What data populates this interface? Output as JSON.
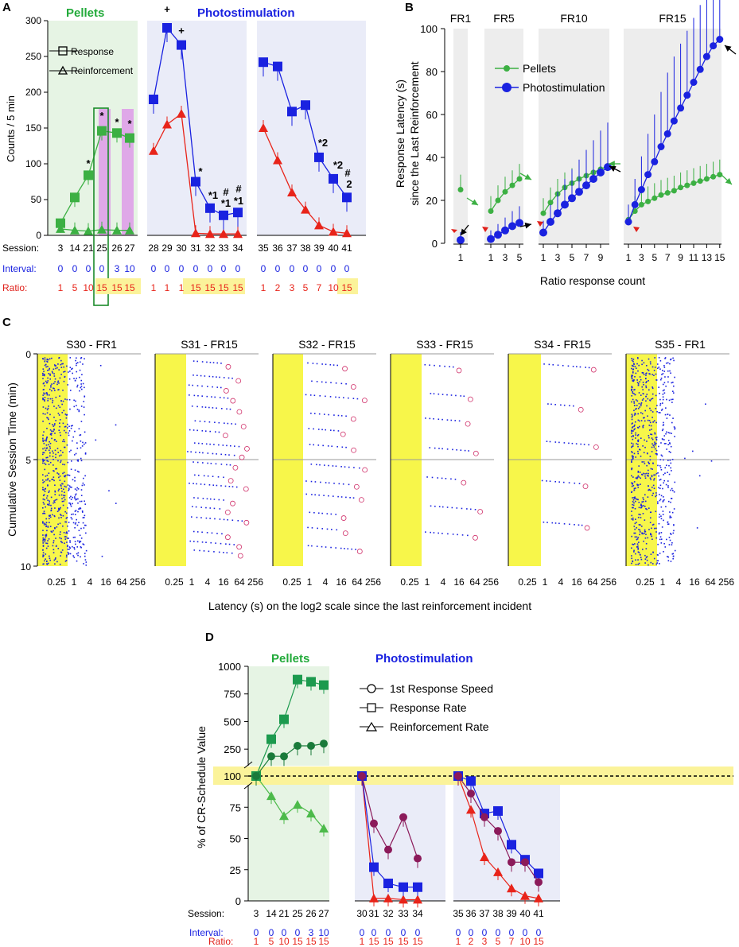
{
  "chart_data": [
    {
      "panel": "A",
      "type": "line",
      "ylabel": "Counts / 5 min",
      "ylim": [
        0,
        300
      ],
      "yticks": [
        0,
        50,
        100,
        150,
        200,
        250,
        300
      ],
      "group_titles": {
        "pellets": "Pellets",
        "photo": "Photostimulation"
      },
      "legend": {
        "response": "Response",
        "reinforcement": "Reinforcement"
      },
      "row_labels": {
        "session": "Session:",
        "interval": "Interval:",
        "ratio": "Ratio:"
      },
      "sessions": [
        "3",
        "14",
        "21",
        "25",
        "26",
        "27",
        "28",
        "29",
        "30",
        "31",
        "32",
        "33",
        "34",
        "35",
        "36",
        "37",
        "38",
        "39",
        "40",
        "41"
      ],
      "intervals": [
        "0",
        "0",
        "0",
        "0",
        "3",
        "10",
        "0",
        "0",
        "0",
        "0",
        "0",
        "0",
        "0",
        "0",
        "0",
        "0",
        "0",
        "0",
        "0",
        "0"
      ],
      "ratios": [
        "1",
        "5",
        "10",
        "15",
        "15",
        "15",
        "1",
        "1",
        "1",
        "15",
        "15",
        "15",
        "15",
        "1",
        "2",
        "3",
        "5",
        "7",
        "10",
        "15"
      ],
      "response": [
        17,
        53,
        84,
        146,
        143,
        136,
        190,
        290,
        266,
        75,
        38,
        28,
        32,
        242,
        236,
        173,
        182,
        109,
        79,
        53
      ],
      "reinforcement": [
        9,
        7,
        6,
        8,
        7,
        7,
        118,
        155,
        170,
        3,
        2,
        2,
        2,
        150,
        105,
        60,
        36,
        14,
        5,
        3
      ],
      "annotations": [
        "*",
        "*",
        "*",
        "*",
        "*",
        "+",
        "+",
        "*",
        "*1",
        "#",
        "*1",
        "#",
        "#",
        "*1",
        "*2",
        "*2",
        "#",
        "2"
      ]
    },
    {
      "panel": "B",
      "type": "line",
      "ylabel": "Response Latency (s) since the Last Reinforcement",
      "xlabel": "Ratio response count",
      "ylim": [
        0,
        100
      ],
      "yticks": [
        0,
        20,
        40,
        60,
        80,
        100
      ],
      "legend": {
        "pellets": "Pellets",
        "photo": "Photostimulation"
      },
      "subpanels": [
        {
          "title": "FR1",
          "xticks": [
            "1"
          ],
          "pellets": [
            25
          ],
          "photo": [
            1.5
          ]
        },
        {
          "title": "FR5",
          "xticks": [
            "1",
            "3",
            "5"
          ],
          "pellets": [
            15,
            20,
            24,
            27,
            30
          ],
          "photo": [
            2,
            4,
            6,
            8,
            9.5
          ]
        },
        {
          "title": "FR10",
          "xticks": [
            "1",
            "3",
            "5",
            "7",
            "9"
          ],
          "pellets": [
            14,
            19,
            23,
            26,
            28,
            30,
            31.5,
            33,
            34.5,
            36
          ],
          "photo": [
            5,
            10,
            14,
            18,
            21,
            24,
            27,
            30,
            33,
            35.5
          ]
        },
        {
          "title": "FR15",
          "xticks": [
            "1",
            "3",
            "5",
            "7",
            "9",
            "11",
            "13",
            "15"
          ],
          "pellets": [
            11,
            15,
            18,
            19.5,
            21,
            22.5,
            23.5,
            24.5,
            26,
            27,
            28,
            29,
            30,
            31,
            32
          ],
          "photo": [
            10,
            18,
            25,
            32,
            38,
            45,
            51,
            57,
            63,
            69,
            75,
            81,
            87,
            92,
            95
          ]
        }
      ]
    },
    {
      "panel": "C",
      "type": "scatter",
      "ylabel": "Cumulative Session Time (min)",
      "xlabel": "Latency (s) on the log2 scale since the last reinforcement incident",
      "yticks": [
        "0",
        "5",
        "10"
      ],
      "xticks": [
        "0.25",
        "1",
        "4",
        "16",
        "64",
        "256"
      ],
      "subpanels": [
        {
          "title": "S30 - FR1"
        },
        {
          "title": "S31 - FR15"
        },
        {
          "title": "S32 - FR15"
        },
        {
          "title": "S33 - FR15"
        },
        {
          "title": "S34 - FR15"
        },
        {
          "title": "S35 - FR1"
        }
      ]
    },
    {
      "panel": "D",
      "type": "line",
      "ylabel": "% of CR-Schedule Value",
      "group_titles": {
        "pellets": "Pellets",
        "photo": "Photostimulation"
      },
      "legend": {
        "speed": "1st Response Speed",
        "rate": "Response Rate",
        "reinf": "Reinforcement Rate"
      },
      "yticks_upper": [
        "250",
        "500",
        "750",
        "1000"
      ],
      "yticks_lower": [
        "0",
        "25",
        "50",
        "75",
        "100"
      ],
      "row_labels": {
        "session": "Session:",
        "interval": "Interval:",
        "ratio": "Ratio:"
      },
      "sessions": [
        "3",
        "14",
        "21",
        "25",
        "26",
        "27",
        "30",
        "31",
        "32",
        "33",
        "34",
        "35",
        "36",
        "37",
        "38",
        "39",
        "40",
        "41"
      ],
      "intervals": [
        "0",
        "0",
        "0",
        "0",
        "3",
        "10",
        "0",
        "0",
        "0",
        "0",
        "0",
        "0",
        "0",
        "0",
        "0",
        "0",
        "0",
        "0"
      ],
      "ratios": [
        "1",
        "5",
        "10",
        "15",
        "15",
        "15",
        "1",
        "15",
        "15",
        "15",
        "15",
        "1",
        "2",
        "3",
        "5",
        "7",
        "10",
        "15"
      ],
      "pellets": {
        "speed": [
          100,
          185,
          185,
          280,
          280,
          300
        ],
        "rate": [
          100,
          340,
          520,
          880,
          860,
          830
        ],
        "reinf": [
          100,
          84,
          68,
          77,
          70,
          58
        ]
      },
      "photo_a": {
        "speed": [
          100,
          62,
          41,
          67,
          34
        ],
        "rate": [
          100,
          27,
          14,
          11,
          11
        ],
        "reinf": [
          100,
          2,
          2,
          1,
          1
        ]
      },
      "photo_b": {
        "speed": [
          100,
          86,
          67,
          56,
          31,
          31,
          15
        ],
        "rate": [
          100,
          96,
          70,
          72,
          45,
          33,
          22
        ],
        "reinf": [
          100,
          73,
          35,
          23,
          10,
          4,
          2
        ]
      }
    }
  ]
}
